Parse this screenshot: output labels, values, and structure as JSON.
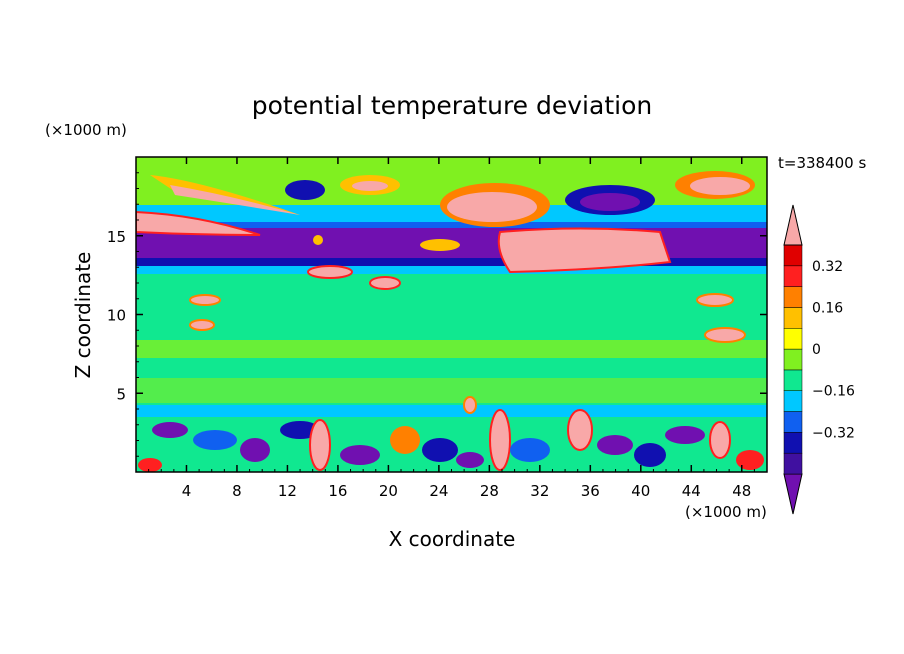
{
  "chart_data": {
    "type": "heatmap",
    "title": "potential temperature deviation",
    "xlabel": "X coordinate",
    "ylabel": "Z coordinate",
    "x_unit": "(×1000 m)",
    "y_unit": "(×1000 m)",
    "time_label": "t=338400 s",
    "xlim": [
      0,
      50
    ],
    "ylim": [
      0,
      20
    ],
    "x_ticks": [
      4,
      8,
      12,
      16,
      20,
      24,
      28,
      32,
      36,
      40,
      44,
      48
    ],
    "y_ticks": [
      5,
      10,
      15
    ],
    "colorbar": {
      "levels": [
        -0.48,
        -0.4,
        -0.32,
        -0.24,
        -0.16,
        -0.08,
        0,
        0.08,
        0.16,
        0.24,
        0.32,
        0.4
      ],
      "colors": [
        "#7010b0",
        "#4010a0",
        "#1010b0",
        "#1060f0",
        "#00c8ff",
        "#10e890",
        "#80f020",
        "#ffff00",
        "#ffc000",
        "#ff8000",
        "#ff2020",
        "#e00000",
        "#f8a8a8"
      ],
      "tick_labels": [
        "0.32",
        "0.16",
        "0",
        "−0.16",
        "−0.32"
      ],
      "tick_values": [
        0.32,
        0.16,
        0,
        -0.16,
        -0.32
      ],
      "extend": "both"
    },
    "grid": false,
    "legend": "colorbar-right"
  }
}
